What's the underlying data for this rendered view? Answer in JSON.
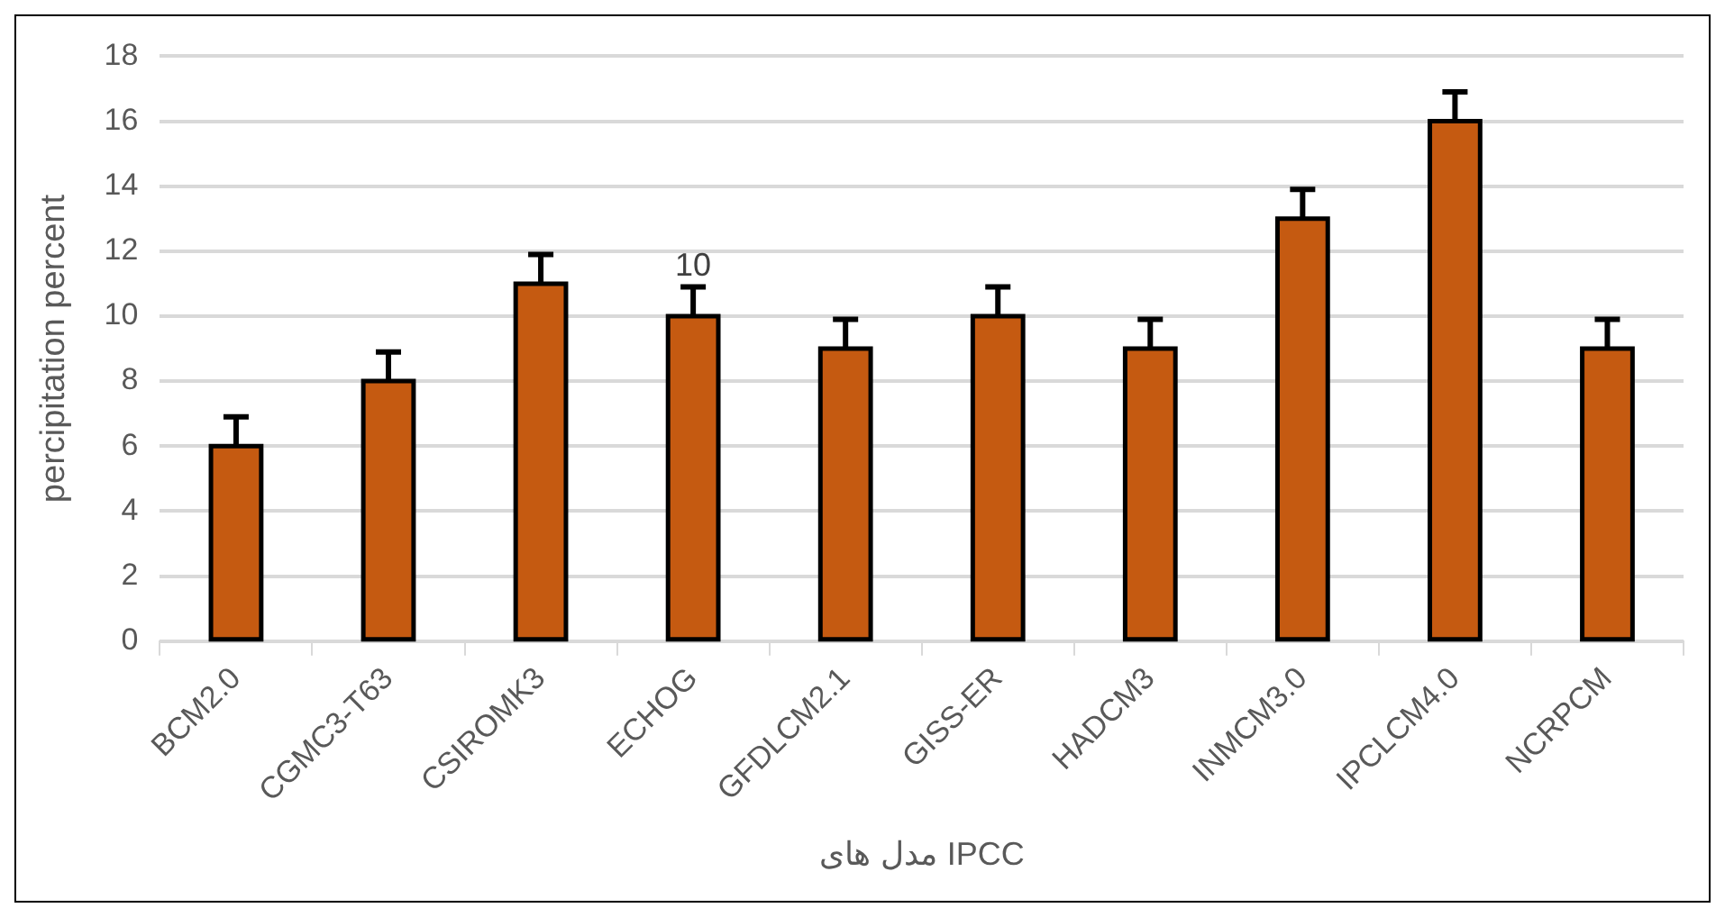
{
  "chart_data": {
    "type": "bar",
    "xlabel": "مدل های IPCC",
    "ylabel": "percipitation percent",
    "categories": [
      "BCM2.0",
      "CGMC3-T63",
      "CSIROMK3",
      "ECHOG",
      "GFDLCM2.1",
      "GISS-ER",
      "HADCM3",
      "INMCM3.0",
      "IPCLCM4.0",
      "NCRPCM"
    ],
    "values": [
      6,
      8,
      11,
      10,
      9,
      10,
      9,
      13,
      16,
      9
    ],
    "errors": [
      [
        6,
        6.9
      ],
      [
        8,
        8.9
      ],
      [
        11,
        11.9
      ],
      [
        10,
        10.9
      ],
      [
        9,
        9.9
      ],
      [
        10,
        10.9
      ],
      [
        9,
        9.9
      ],
      [
        13,
        13.9
      ],
      [
        16,
        16.9
      ],
      [
        9,
        9.9
      ]
    ],
    "value_labels": [
      null,
      null,
      null,
      "10",
      null,
      null,
      null,
      null,
      null,
      null
    ],
    "color": "#c55a11",
    "ylim": [
      0,
      18
    ],
    "yticks": [
      0,
      2,
      4,
      6,
      8,
      10,
      12,
      14,
      16,
      18
    ],
    "grid": "y",
    "legend": false
  }
}
